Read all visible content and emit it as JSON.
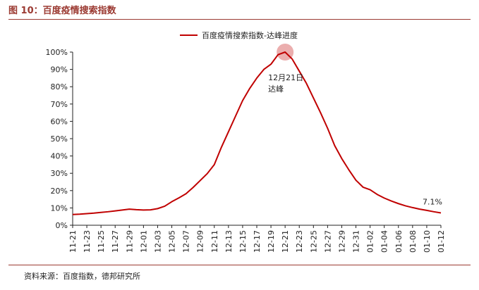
{
  "figure": {
    "title": "图 10：百度疫情搜索指数",
    "source": "资料来源：百度指数，德邦研究所"
  },
  "colors": {
    "line": "#c00000",
    "accent": "#9b3a32",
    "peak_marker": "#e8a0a0"
  },
  "chart_data": {
    "type": "line",
    "title": "",
    "xlabel": "",
    "ylabel": "",
    "ylim": [
      0,
      100
    ],
    "y_ticks": [
      "0%",
      "10%",
      "20%",
      "30%",
      "40%",
      "50%",
      "60%",
      "70%",
      "80%",
      "90%",
      "100%"
    ],
    "y_tick_values": [
      0,
      10,
      20,
      30,
      40,
      50,
      60,
      70,
      80,
      90,
      100
    ],
    "x_tick_labels": [
      "11-21",
      "11-23",
      "11-25",
      "11-27",
      "11-29",
      "12-01",
      "12-03",
      "12-05",
      "12-07",
      "12-09",
      "12-11",
      "12-13",
      "12-15",
      "12-17",
      "12-19",
      "12-21",
      "12-23",
      "12-25",
      "12-27",
      "12-29",
      "12-31",
      "01-02",
      "01-04",
      "01-06",
      "01-08",
      "01-10",
      "01-12"
    ],
    "legend_position": "top-center",
    "grid": false,
    "series": [
      {
        "name": "百度疫情搜索指数-达峰进度",
        "x": [
          "11-21",
          "11-22",
          "11-23",
          "11-24",
          "11-25",
          "11-26",
          "11-27",
          "11-28",
          "11-29",
          "11-30",
          "12-01",
          "12-02",
          "12-03",
          "12-04",
          "12-05",
          "12-06",
          "12-07",
          "12-08",
          "12-09",
          "12-10",
          "12-11",
          "12-12",
          "12-13",
          "12-14",
          "12-15",
          "12-16",
          "12-17",
          "12-18",
          "12-19",
          "12-20",
          "12-21",
          "12-22",
          "12-23",
          "12-24",
          "12-25",
          "12-26",
          "12-27",
          "12-28",
          "12-29",
          "12-30",
          "12-31",
          "01-01",
          "01-02",
          "01-03",
          "01-04",
          "01-05",
          "01-06",
          "01-07",
          "01-08",
          "01-09",
          "01-10",
          "01-11",
          "01-12"
        ],
        "values": [
          6.2,
          6.4,
          6.7,
          7.0,
          7.4,
          7.8,
          8.3,
          8.8,
          9.3,
          9.0,
          8.8,
          8.9,
          9.6,
          11.0,
          13.6,
          15.8,
          18.2,
          21.8,
          25.8,
          29.8,
          35.0,
          45.0,
          54.0,
          63.0,
          72.0,
          79.0,
          85.0,
          90.0,
          93.0,
          98.5,
          100.0,
          96.0,
          89.0,
          82.0,
          73.5,
          65.0,
          56.0,
          46.0,
          38.5,
          32.0,
          26.0,
          22.0,
          20.5,
          17.8,
          15.7,
          14.0,
          12.5,
          11.2,
          10.2,
          9.3,
          8.6,
          7.8,
          7.1
        ]
      }
    ],
    "annotations": {
      "peak_label_line1": "12月21日",
      "peak_label_line2": "达峰",
      "peak_x": "12-21",
      "peak_value": 100.0,
      "last_value_label": "7.1%"
    }
  }
}
